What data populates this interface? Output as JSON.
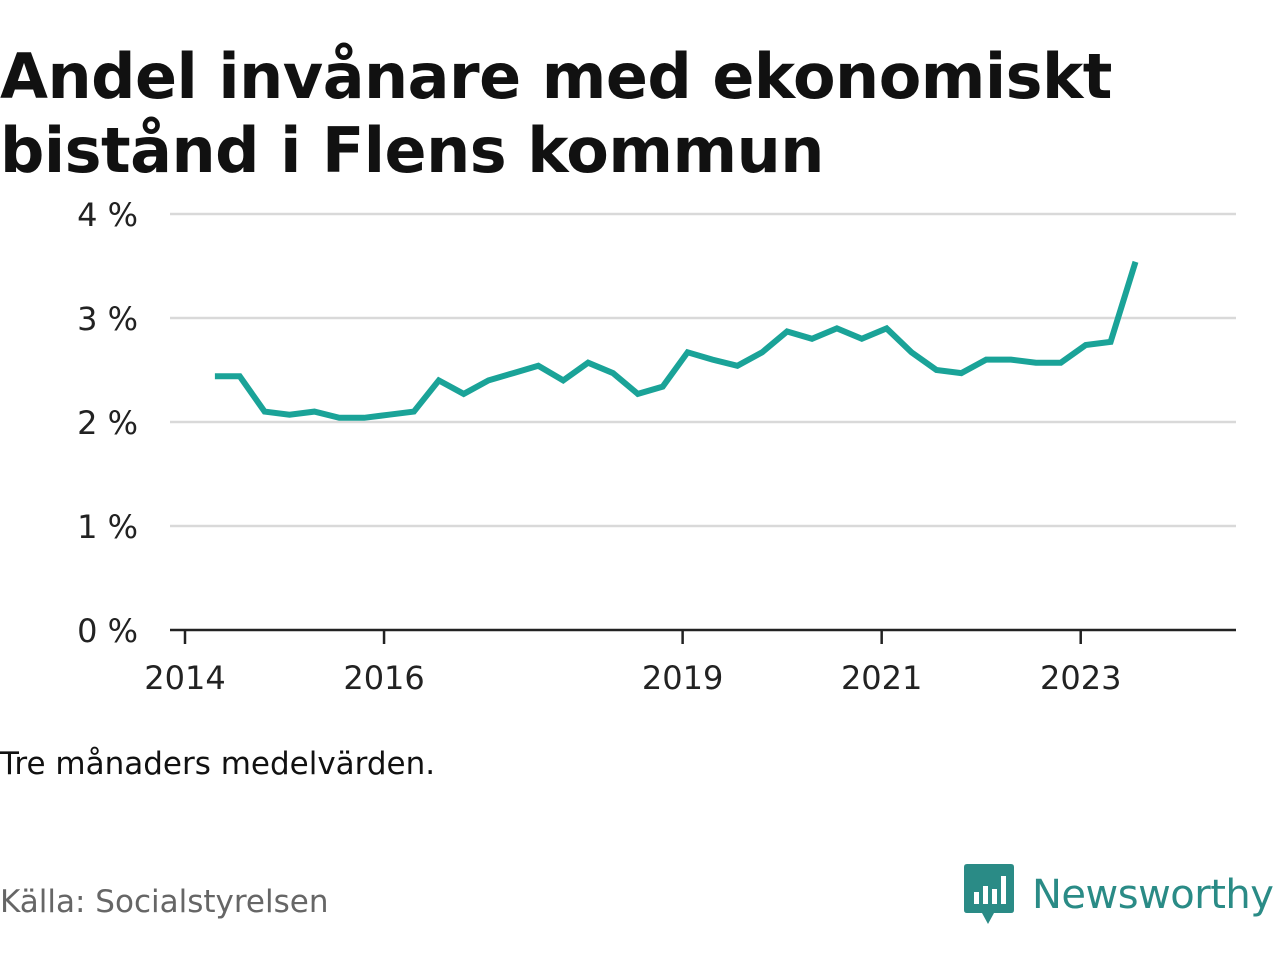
{
  "title": "Andel invånare med ekonomiskt bistånd i Flens kommun",
  "note": "Tre månaders medelvärden.",
  "source": "Källa: Socialstyrelsen",
  "logo": {
    "name": "Newsworthy",
    "icon": "newsworthy-logo-icon",
    "color": "#2a8b86"
  },
  "colors": {
    "line": "#1aa398",
    "grid": "#d9d9d9",
    "axis": "#222222"
  },
  "chart_data": {
    "type": "line",
    "title": "Andel invånare med ekonomiskt bistånd i Flens kommun",
    "xlabel": "",
    "ylabel": "",
    "ylim": [
      0,
      4
    ],
    "xlim": [
      2014,
      2024.5
    ],
    "yticks": [
      0,
      1,
      2,
      3,
      4
    ],
    "ytick_labels": [
      "0 %",
      "1 %",
      "2 %",
      "3 %",
      "4 %"
    ],
    "xticks": [
      2014,
      2016,
      2019,
      2021,
      2023
    ],
    "xtick_labels": [
      "2014",
      "2016",
      "2019",
      "2021",
      "2023"
    ],
    "grid": true,
    "legend": "none",
    "series": [
      {
        "x": [
          2014.3,
          2014.55,
          2014.8,
          2015.05,
          2015.3,
          2015.55,
          2015.8,
          2016.05,
          2016.3,
          2016.55,
          2016.8,
          2017.05,
          2017.3,
          2017.55,
          2017.8,
          2018.05,
          2018.3,
          2018.55,
          2018.8,
          2019.05,
          2019.3,
          2019.55,
          2019.8,
          2020.05,
          2020.3,
          2020.55,
          2020.8,
          2021.05,
          2021.3,
          2021.55,
          2021.8,
          2022.05,
          2022.3,
          2022.55,
          2022.8,
          2023.05,
          2023.3,
          2023.55
        ],
        "values": [
          2.44,
          2.44,
          2.1,
          2.07,
          2.1,
          2.04,
          2.04,
          2.07,
          2.1,
          2.4,
          2.27,
          2.4,
          2.47,
          2.54,
          2.4,
          2.57,
          2.47,
          2.27,
          2.34,
          2.67,
          2.6,
          2.54,
          2.67,
          2.87,
          2.8,
          2.9,
          2.8,
          2.9,
          2.67,
          2.5,
          2.47,
          2.6,
          2.6,
          2.57,
          2.57,
          2.74,
          2.77,
          3.54
        ]
      }
    ]
  }
}
